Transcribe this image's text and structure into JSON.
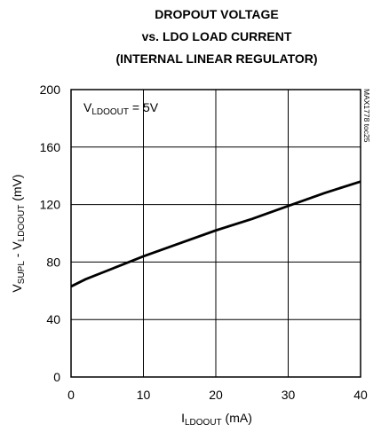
{
  "chart_data": {
    "type": "line",
    "title": [
      "DROPOUT VOLTAGE",
      "vs. LDO LOAD CURRENT",
      "(INTERNAL LINEAR REGULATOR)"
    ],
    "x_label": [
      "I",
      "LDOOUT",
      " (mA)"
    ],
    "y_label": [
      "V",
      "SUPL",
      " - V",
      "LDOOUT",
      " (mV)"
    ],
    "annotation": [
      "V",
      "LDOOUT",
      " = 5V"
    ],
    "side_note": "MAX1778 toc25",
    "x": [
      0,
      2,
      5,
      10,
      15,
      20,
      25,
      30,
      35,
      40
    ],
    "series": [
      {
        "color": "#000000",
        "values": [
          63,
          68,
          74,
          84,
          93,
          102,
          110,
          119,
          128,
          136
        ]
      }
    ],
    "xlim": [
      0,
      40
    ],
    "xticks": [
      0,
      10,
      20,
      30,
      40
    ],
    "ylim": [
      0,
      200
    ],
    "yticks": [
      0,
      40,
      80,
      120,
      160,
      200
    ],
    "grid": true
  }
}
